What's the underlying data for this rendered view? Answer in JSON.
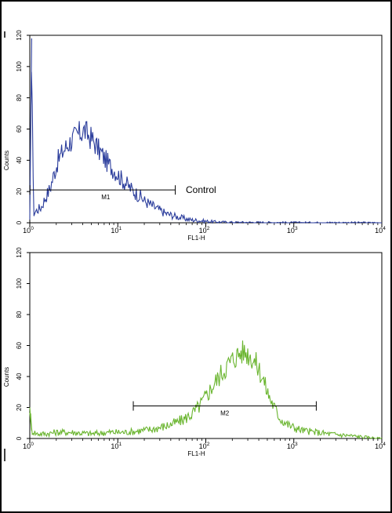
{
  "chart_data": [
    {
      "type": "line",
      "title": "",
      "xlabel": "FL1-H",
      "ylabel": "Counts",
      "xscale": "log",
      "xlim": [
        1,
        10000
      ],
      "ylim": [
        0,
        120
      ],
      "xticks": [
        {
          "value": 1,
          "base": "10",
          "exp": "0"
        },
        {
          "value": 10,
          "base": "10",
          "exp": "1"
        },
        {
          "value": 100,
          "base": "10",
          "exp": "2"
        },
        {
          "value": 1000,
          "base": "10",
          "exp": "3"
        },
        {
          "value": 10000,
          "base": "10",
          "exp": "4"
        }
      ],
      "yticks": [
        "0",
        "20",
        "40",
        "60",
        "80",
        "100",
        "120"
      ],
      "grid": false,
      "series": [
        {
          "color": "#2b3d9c",
          "x": [
            1.0,
            1.05,
            1.1,
            1.2,
            1.35,
            1.5,
            1.7,
            1.9,
            2.1,
            2.4,
            2.7,
            3.0,
            3.3,
            3.6,
            3.9,
            4.2,
            4.6,
            5.0,
            5.5,
            6.0,
            6.6,
            7.3,
            8.0,
            9.0,
            10,
            11,
            12.5,
            14,
            16,
            18,
            20,
            23,
            26,
            30,
            35,
            40,
            46,
            55,
            65,
            80,
            100,
            130,
            170,
            220,
            300,
            500,
            1000,
            3000,
            10000
          ],
          "y": [
            2,
            118,
            6,
            8,
            10,
            16,
            22,
            32,
            40,
            46,
            50,
            53,
            55,
            57,
            58,
            59,
            56,
            54,
            51,
            47,
            44,
            40,
            37,
            34,
            31,
            28,
            25,
            22,
            19,
            17,
            14,
            12,
            10,
            8,
            6,
            5,
            4,
            3,
            2,
            1.5,
            1,
            0.6,
            0.4,
            0.3,
            0.3,
            0.2,
            0.1,
            0.1,
            0
          ]
        }
      ],
      "marker": {
        "label": "M1",
        "from": 1,
        "to": 45,
        "y": 21
      },
      "annotations": [
        "Control"
      ]
    },
    {
      "type": "line",
      "title": "",
      "xlabel": "FL1-H",
      "ylabel": "Counts",
      "xscale": "log",
      "xlim": [
        1,
        10000
      ],
      "ylim": [
        0,
        120
      ],
      "xticks": [
        {
          "value": 1,
          "base": "10",
          "exp": "0"
        },
        {
          "value": 10,
          "base": "10",
          "exp": "1"
        },
        {
          "value": 100,
          "base": "10",
          "exp": "2"
        },
        {
          "value": 1000,
          "base": "10",
          "exp": "3"
        },
        {
          "value": 10000,
          "base": "10",
          "exp": "4"
        }
      ],
      "yticks": [
        "0",
        "20",
        "40",
        "60",
        "80",
        "100",
        "120"
      ],
      "grid": false,
      "series": [
        {
          "color": "#6ab52f",
          "x": [
            1.0,
            1.05,
            1.2,
            1.5,
            2,
            3,
            5,
            8,
            12,
            18,
            25,
            35,
            45,
            55,
            70,
            85,
            100,
            120,
            150,
            180,
            210,
            240,
            270,
            300,
            350,
            400,
            450,
            500,
            600,
            700,
            850,
            1000,
            1300,
            1800,
            2500,
            4000,
            6000,
            10000
          ],
          "y": [
            20,
            5,
            3,
            3,
            4,
            4,
            3,
            4,
            4,
            5,
            6,
            8,
            10,
            12,
            16,
            21,
            27,
            34,
            42,
            48,
            52,
            55,
            56,
            55,
            51,
            45,
            38,
            30,
            20,
            13,
            9,
            7,
            5,
            4,
            3,
            2,
            1,
            0
          ]
        }
      ],
      "marker": {
        "label": "M2",
        "from": 15,
        "to": 1800,
        "y": 21
      },
      "annotations": []
    }
  ]
}
